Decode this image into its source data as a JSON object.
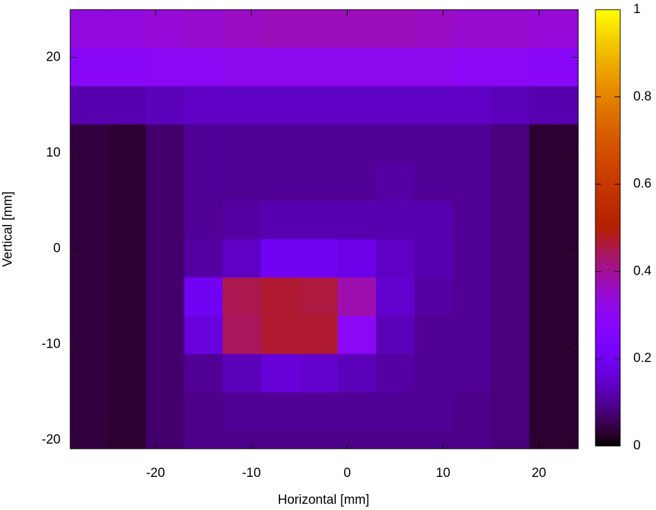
{
  "chart_data": {
    "type": "heatmap",
    "xlabel": "Horizontal [mm]",
    "ylabel": "Vertical [mm]",
    "xlim": [
      -28.9,
      24.1
    ],
    "ylim": [
      -20.9,
      25
    ],
    "xticks": [
      -20,
      -10,
      0,
      10,
      20
    ],
    "yticks": [
      -20,
      -10,
      0,
      10,
      20
    ],
    "zlim": [
      0,
      1
    ],
    "zticks": [
      0,
      0.2,
      0.4,
      0.6,
      0.8,
      1
    ],
    "palette": "gnuplot-7-5-15",
    "x": [
      -27,
      -23,
      -19,
      -15,
      -11,
      -7,
      -3,
      1,
      5,
      9,
      13,
      17,
      21,
      25
    ],
    "y": [
      23,
      19,
      15,
      11,
      7,
      3,
      -1,
      -5,
      -9,
      -13,
      -17,
      -21
    ],
    "z": [
      [
        0.33,
        0.33,
        0.34,
        0.35,
        0.36,
        0.37,
        0.37,
        0.37,
        0.37,
        0.36,
        0.35,
        0.35,
        0.34,
        0.34
      ],
      [
        0.29,
        0.29,
        0.3,
        0.3,
        0.31,
        0.31,
        0.31,
        0.31,
        0.31,
        0.31,
        0.3,
        0.3,
        0.29,
        0.29
      ],
      [
        0.12,
        0.12,
        0.13,
        0.14,
        0.14,
        0.14,
        0.14,
        0.14,
        0.14,
        0.14,
        0.14,
        0.13,
        0.12,
        0.12
      ],
      [
        0.04,
        0.03,
        0.07,
        0.1,
        0.1,
        0.1,
        0.1,
        0.1,
        0.1,
        0.1,
        0.1,
        0.08,
        0.03,
        0.03
      ],
      [
        0.04,
        0.03,
        0.07,
        0.1,
        0.1,
        0.1,
        0.1,
        0.1,
        0.11,
        0.1,
        0.1,
        0.08,
        0.03,
        0.03
      ],
      [
        0.04,
        0.03,
        0.07,
        0.1,
        0.11,
        0.12,
        0.12,
        0.12,
        0.12,
        0.12,
        0.1,
        0.08,
        0.03,
        0.03
      ],
      [
        0.04,
        0.03,
        0.07,
        0.11,
        0.14,
        0.2,
        0.2,
        0.18,
        0.14,
        0.12,
        0.1,
        0.08,
        0.03,
        0.03
      ],
      [
        0.04,
        0.03,
        0.07,
        0.2,
        0.45,
        0.47,
        0.46,
        0.38,
        0.15,
        0.11,
        0.1,
        0.08,
        0.03,
        0.03
      ],
      [
        0.04,
        0.03,
        0.07,
        0.17,
        0.44,
        0.47,
        0.47,
        0.3,
        0.13,
        0.1,
        0.1,
        0.08,
        0.03,
        0.03
      ],
      [
        0.04,
        0.03,
        0.07,
        0.1,
        0.13,
        0.16,
        0.15,
        0.13,
        0.11,
        0.1,
        0.1,
        0.08,
        0.03,
        0.03
      ],
      [
        0.04,
        0.03,
        0.07,
        0.09,
        0.1,
        0.1,
        0.1,
        0.1,
        0.1,
        0.1,
        0.09,
        0.08,
        0.03,
        0.03
      ],
      [
        0.04,
        0.03,
        0.07,
        0.09,
        0.09,
        0.09,
        0.09,
        0.09,
        0.09,
        0.09,
        0.09,
        0.08,
        0.03,
        0.03
      ]
    ]
  }
}
